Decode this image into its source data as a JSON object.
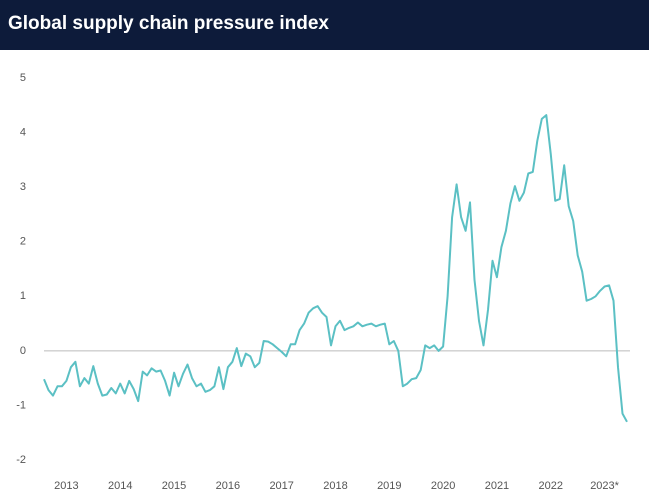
{
  "chart_data": {
    "type": "line",
    "title": "Global supply chain pressure index",
    "categories": [
      null,
      null,
      null,
      null,
      null,
      "2013",
      null,
      null,
      null,
      null,
      null,
      null,
      null,
      null,
      null,
      null,
      null,
      "2014",
      null,
      null,
      null,
      null,
      null,
      null,
      null,
      null,
      null,
      null,
      null,
      "2015",
      null,
      null,
      null,
      null,
      null,
      null,
      null,
      null,
      null,
      null,
      null,
      "2016",
      null,
      null,
      null,
      null,
      null,
      null,
      null,
      null,
      null,
      null,
      null,
      "2017",
      null,
      null,
      null,
      null,
      null,
      null,
      null,
      null,
      null,
      null,
      null,
      "2018",
      null,
      null,
      null,
      null,
      null,
      null,
      null,
      null,
      null,
      null,
      null,
      "2019",
      null,
      null,
      null,
      null,
      null,
      null,
      null,
      null,
      null,
      null,
      null,
      "2020",
      null,
      null,
      null,
      null,
      null,
      null,
      null,
      null,
      null,
      null,
      null,
      "2021",
      null,
      null,
      null,
      null,
      null,
      null,
      null,
      null,
      null,
      null,
      null,
      "2022",
      null,
      null,
      null,
      null,
      null,
      null,
      null,
      null,
      null,
      null,
      null,
      "2023*",
      null,
      null,
      null,
      null,
      null
    ],
    "series": [
      {
        "color": "#5bc0c4",
        "values": [
          -0.52,
          -0.72,
          -0.82,
          -0.65,
          -0.65,
          -0.55,
          -0.3,
          -0.2,
          -0.65,
          -0.5,
          -0.6,
          -0.28,
          -0.6,
          -0.82,
          -0.8,
          -0.68,
          -0.78,
          -0.6,
          -0.78,
          -0.55,
          -0.7,
          -0.92,
          -0.38,
          -0.45,
          -0.32,
          -0.38,
          -0.36,
          -0.55,
          -0.82,
          -0.4,
          -0.65,
          -0.42,
          -0.25,
          -0.5,
          -0.65,
          -0.6,
          -0.75,
          -0.72,
          -0.65,
          -0.3,
          -0.7,
          -0.3,
          -0.2,
          0.05,
          -0.28,
          -0.05,
          -0.1,
          -0.3,
          -0.22,
          0.18,
          0.17,
          0.12,
          0.05,
          -0.02,
          -0.1,
          0.12,
          0.12,
          0.38,
          0.5,
          0.7,
          0.78,
          0.82,
          0.7,
          0.62,
          0.1,
          0.45,
          0.55,
          0.38,
          0.42,
          0.45,
          0.52,
          0.45,
          0.48,
          0.5,
          0.45,
          0.48,
          0.5,
          0.12,
          0.18,
          0.0,
          -0.65,
          -0.6,
          -0.52,
          -0.5,
          -0.35,
          0.1,
          0.05,
          0.1,
          0.0,
          0.08,
          1.0,
          2.45,
          3.05,
          2.45,
          2.2,
          2.72,
          1.3,
          0.55,
          0.1,
          0.75,
          1.65,
          1.35,
          1.9,
          2.2,
          2.7,
          3.02,
          2.75,
          2.9,
          3.25,
          3.28,
          3.85,
          4.25,
          4.32,
          3.6,
          2.75,
          2.78,
          3.4,
          2.65,
          2.38,
          1.75,
          1.45,
          0.92,
          0.95,
          1.0,
          1.1,
          1.18,
          1.2,
          0.92,
          -0.3,
          -1.15,
          -1.3
        ]
      }
    ],
    "ylim": [
      -2,
      5
    ],
    "yticks": [
      -2,
      -1,
      0,
      1,
      2,
      3,
      4,
      5
    ],
    "zero_line": true
  }
}
